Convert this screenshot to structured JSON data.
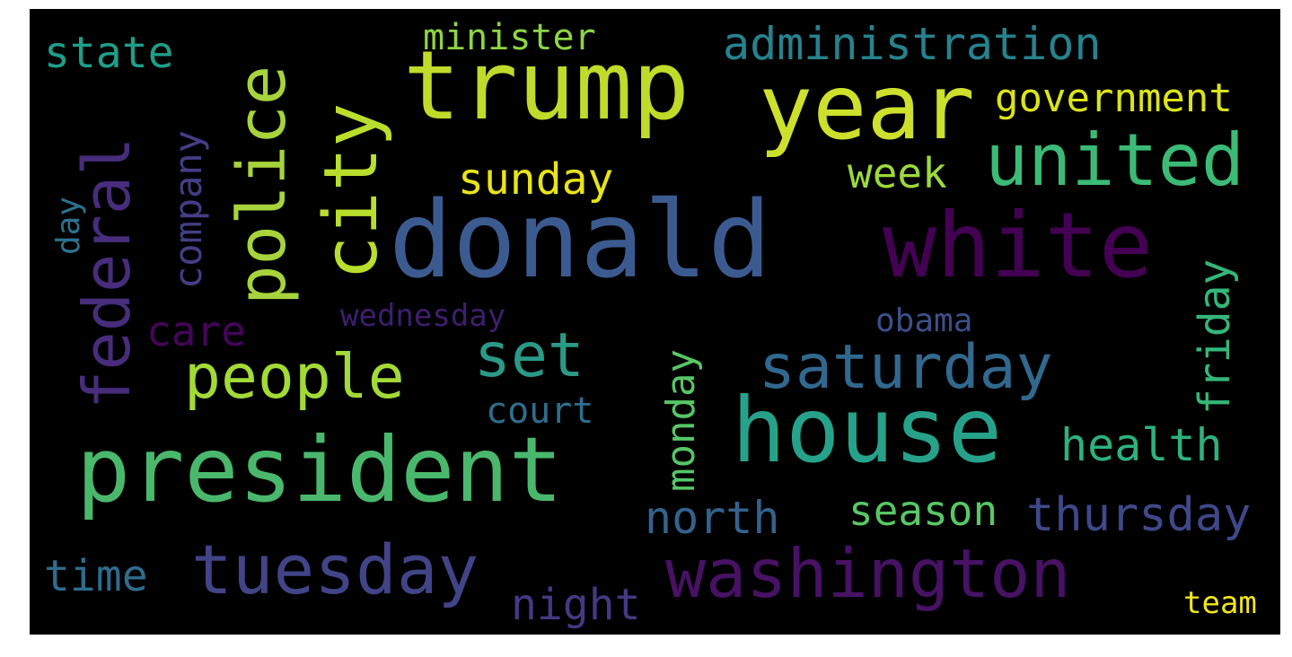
{
  "words": [
    {
      "text": "donald",
      "color": "#3b5b90"
    },
    {
      "text": "trump",
      "color": "#c0db29"
    },
    {
      "text": "year",
      "color": "#cde02c"
    },
    {
      "text": "white",
      "color": "#440154"
    },
    {
      "text": "president",
      "color": "#4ab86c"
    },
    {
      "text": "house",
      "color": "#26a28a"
    },
    {
      "text": "police",
      "color": "#a7d33c"
    },
    {
      "text": "city",
      "color": "#b9de2c"
    },
    {
      "text": "federal",
      "color": "#472d7b"
    },
    {
      "text": "united",
      "color": "#3bbb75"
    },
    {
      "text": "washington",
      "color": "#471164"
    },
    {
      "text": "tuesday",
      "color": "#414487"
    },
    {
      "text": "saturday",
      "color": "#31688e"
    },
    {
      "text": "people",
      "color": "#a2da37"
    },
    {
      "text": "set",
      "color": "#2a9a87"
    },
    {
      "text": "administration",
      "color": "#26828e"
    },
    {
      "text": "government",
      "color": "#dce319"
    },
    {
      "text": "sunday",
      "color": "#e8e419"
    },
    {
      "text": "week",
      "color": "#9dd93b"
    },
    {
      "text": "state",
      "color": "#1f9e89"
    },
    {
      "text": "minister",
      "color": "#8dd544"
    },
    {
      "text": "company",
      "color": "#433e85"
    },
    {
      "text": "day",
      "color": "#2c728e"
    },
    {
      "text": "care",
      "color": "#450559"
    },
    {
      "text": "wednesday",
      "color": "#3e1e6e"
    },
    {
      "text": "obama",
      "color": "#3c4f8a"
    },
    {
      "text": "friday",
      "color": "#34b679"
    },
    {
      "text": "monday",
      "color": "#56c667"
    },
    {
      "text": "court",
      "color": "#2e6e8e"
    },
    {
      "text": "health",
      "color": "#2db27d"
    },
    {
      "text": "north",
      "color": "#33628d"
    },
    {
      "text": "season",
      "color": "#58c765"
    },
    {
      "text": "thursday",
      "color": "#3f4889"
    },
    {
      "text": "time",
      "color": "#2f6c8e"
    },
    {
      "text": "night",
      "color": "#443983"
    },
    {
      "text": "team",
      "color": "#f1e51d"
    }
  ]
}
